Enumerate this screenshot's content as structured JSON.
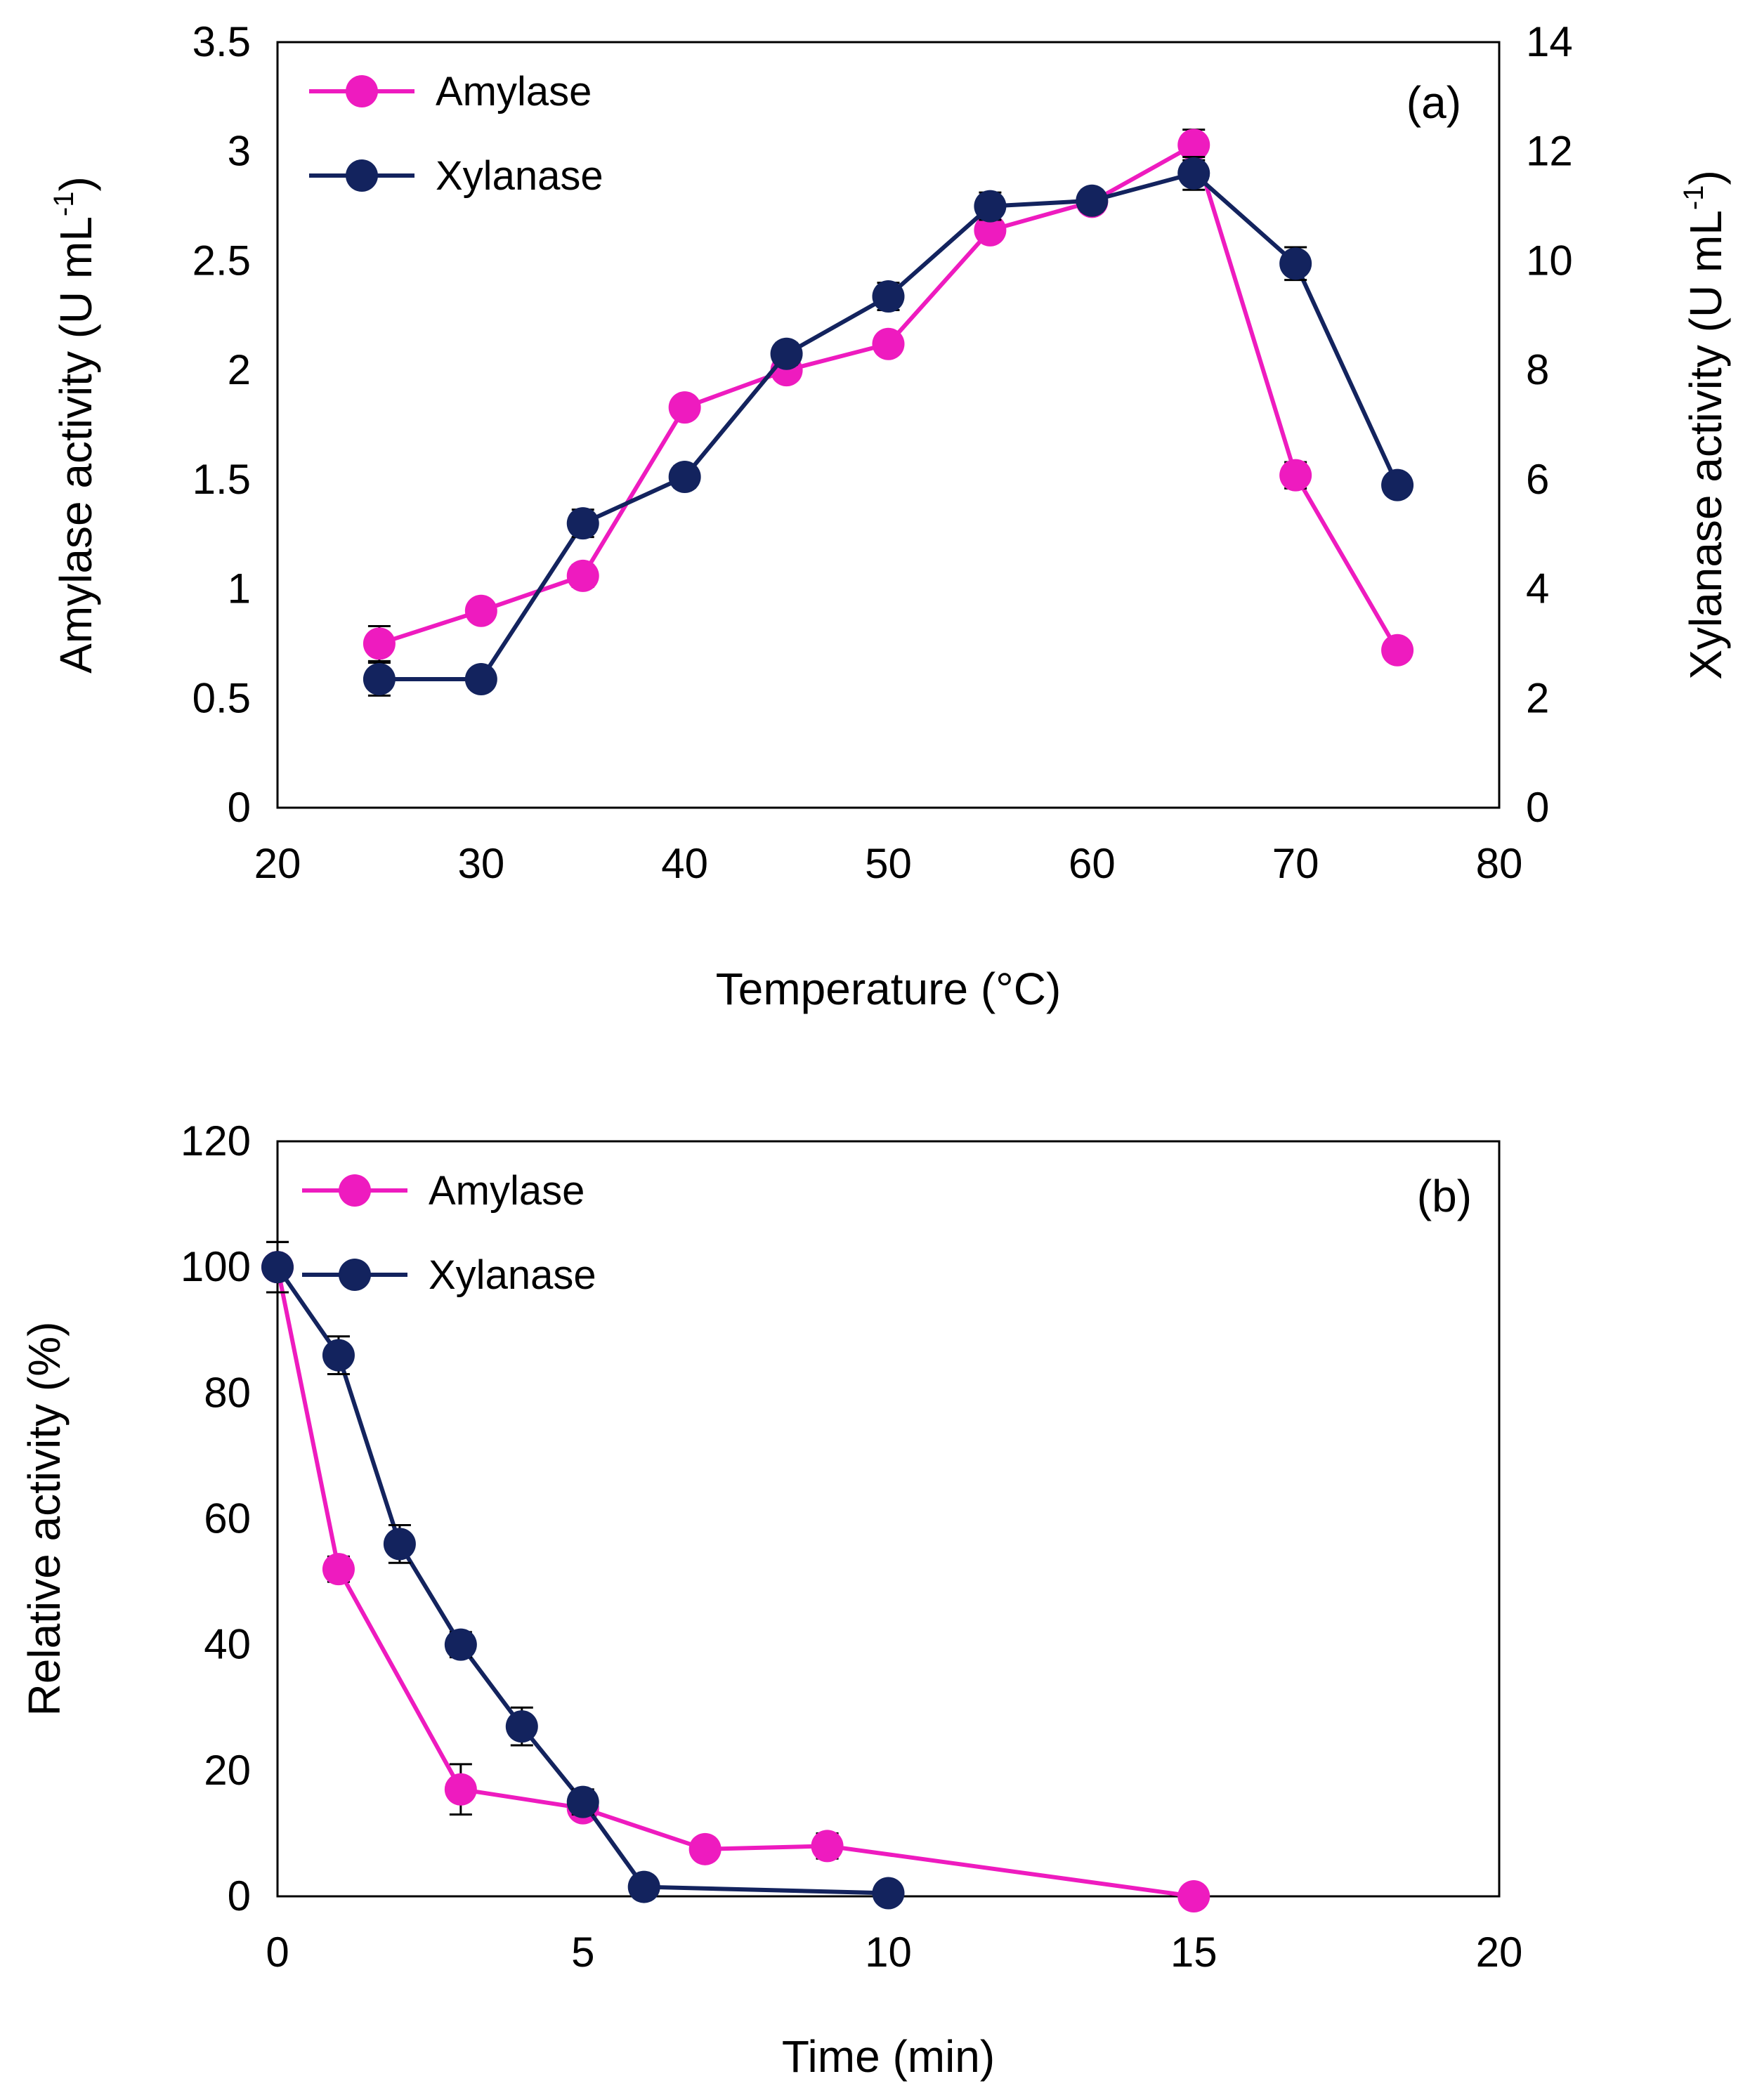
{
  "colors": {
    "amylase": "#EE1BBF",
    "xylanase": "#13235E",
    "axis": "#000000"
  },
  "chart_data": [
    {
      "type": "line",
      "panel_label": "(a)",
      "xlabel": "Temperature (°C)",
      "ylabel_parts": [
        "Amylase activity (U mL",
        "-1",
        ")"
      ],
      "y2label_parts": [
        "Xylanase activity (U mL",
        "-1",
        ")"
      ],
      "xlim": [
        20,
        80
      ],
      "xticks": [
        "20",
        "30",
        "40",
        "50",
        "60",
        "70",
        "80"
      ],
      "ylim": [
        0,
        3.5
      ],
      "yticks": [
        "0",
        "0.5",
        "1",
        "1.5",
        "2",
        "2.5",
        "3",
        "3.5"
      ],
      "y2lim": [
        0,
        14
      ],
      "y2ticks": [
        "0",
        "2",
        "4",
        "6",
        "8",
        "10",
        "12",
        "14"
      ],
      "legend": [
        "Amylase",
        "Xylanase"
      ],
      "series": [
        {
          "name": "Amylase",
          "axis": "left",
          "x": [
            25,
            30,
            35,
            40,
            45,
            50,
            55,
            60,
            65,
            70,
            75
          ],
          "y": [
            0.75,
            0.9,
            1.06,
            1.83,
            2.0,
            2.12,
            2.64,
            2.77,
            3.03,
            1.52,
            0.72
          ],
          "err": [
            0.08,
            0,
            0.05,
            0,
            0,
            0,
            0,
            0,
            0.07,
            0.06,
            0
          ]
        },
        {
          "name": "Xylanase",
          "axis": "right",
          "x": [
            25,
            30,
            35,
            40,
            45,
            50,
            55,
            60,
            65,
            70,
            75
          ],
          "y": [
            2.35,
            2.35,
            5.2,
            6.05,
            8.3,
            9.35,
            11.0,
            11.1,
            11.6,
            9.95,
            5.9
          ],
          "err": [
            0.3,
            0,
            0.25,
            0.2,
            0.2,
            0.25,
            0.25,
            0.2,
            0.3,
            0.3,
            0
          ]
        }
      ]
    },
    {
      "type": "line",
      "panel_label": "(b)",
      "xlabel": "Time (min)",
      "ylabel": "Relative activity (%)",
      "xlim": [
        0,
        20
      ],
      "xticks": [
        "0",
        "5",
        "10",
        "15",
        "20"
      ],
      "ylim": [
        0,
        120
      ],
      "yticks": [
        "0",
        "20",
        "40",
        "60",
        "80",
        "100",
        "120"
      ],
      "legend": [
        "Amylase",
        "Xylanase"
      ],
      "series": [
        {
          "name": "Amylase",
          "x": [
            0,
            1,
            3,
            5,
            7,
            9,
            15
          ],
          "y": [
            100,
            52,
            17,
            14,
            7.5,
            8,
            0
          ],
          "err": [
            4,
            2,
            4,
            0,
            0,
            2,
            0
          ]
        },
        {
          "name": "Xylanase",
          "x": [
            0,
            1,
            2,
            3,
            4,
            5,
            6,
            10
          ],
          "y": [
            100,
            86,
            56,
            40,
            27,
            15,
            1.5,
            0.5
          ],
          "err": [
            4,
            3,
            3,
            2,
            3,
            2,
            0,
            0
          ]
        }
      ]
    }
  ]
}
